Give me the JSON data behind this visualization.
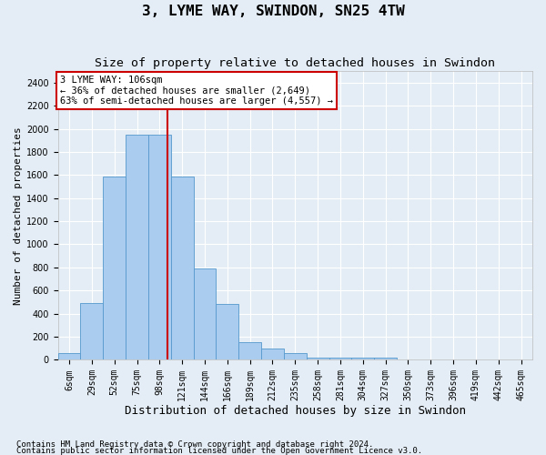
{
  "title": "3, LYME WAY, SWINDON, SN25 4TW",
  "subtitle": "Size of property relative to detached houses in Swindon",
  "xlabel": "Distribution of detached houses by size in Swindon",
  "ylabel": "Number of detached properties",
  "footnote1": "Contains HM Land Registry data © Crown copyright and database right 2024.",
  "footnote2": "Contains public sector information licensed under the Open Government Licence v3.0.",
  "annotation_line1": "3 LYME WAY: 106sqm",
  "annotation_line2": "← 36% of detached houses are smaller (2,649)",
  "annotation_line3": "63% of semi-detached houses are larger (4,557) →",
  "bar_labels": [
    "6sqm",
    "29sqm",
    "52sqm",
    "75sqm",
    "98sqm",
    "121sqm",
    "144sqm",
    "166sqm",
    "189sqm",
    "212sqm",
    "235sqm",
    "258sqm",
    "281sqm",
    "304sqm",
    "327sqm",
    "350sqm",
    "373sqm",
    "396sqm",
    "419sqm",
    "442sqm",
    "465sqm"
  ],
  "bar_values": [
    60,
    490,
    1590,
    1950,
    1950,
    1590,
    790,
    480,
    155,
    95,
    55,
    20,
    20,
    20,
    20,
    0,
    0,
    0,
    0,
    0,
    0
  ],
  "bar_color": "#aaccee",
  "bar_edge_color": "#5599cc",
  "vline_color": "#cc0000",
  "vline_x": 4.35,
  "ylim_max": 2500,
  "yticks": [
    0,
    200,
    400,
    600,
    800,
    1000,
    1200,
    1400,
    1600,
    1800,
    2000,
    2200,
    2400
  ],
  "bg_color": "#e4edf5",
  "annotation_box_facecolor": "#ffffff",
  "annotation_box_edgecolor": "#cc0000",
  "title_fontsize": 11.5,
  "subtitle_fontsize": 9.5,
  "xlabel_fontsize": 9,
  "ylabel_fontsize": 8,
  "tick_fontsize": 7,
  "annotation_fontsize": 7.5,
  "footnote_fontsize": 6.5
}
